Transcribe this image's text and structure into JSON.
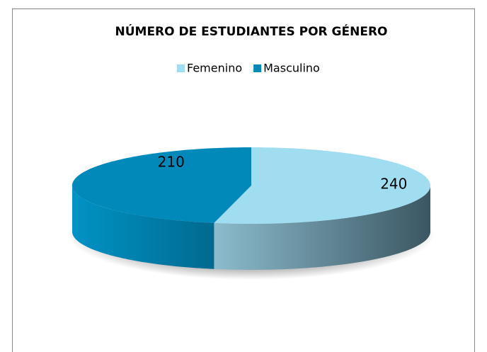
{
  "chart_data": {
    "type": "pie",
    "title": "NÚMERO DE ESTUDIANTES POR GÉNERO",
    "categories": [
      "Femenino",
      "Masculino"
    ],
    "values": [
      240,
      210
    ],
    "colors": [
      "#a0ddf1",
      "#0089b9"
    ],
    "legend": "top",
    "three_d": true
  }
}
